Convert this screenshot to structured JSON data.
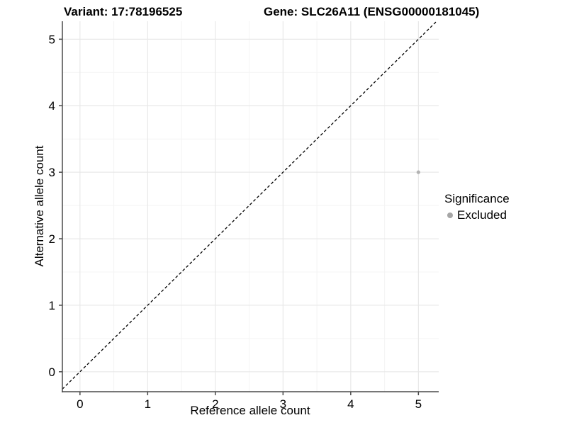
{
  "titles": {
    "left": "Variant: 17:78196525",
    "right": "Gene: SLC26A11 (ENSG00000181045)"
  },
  "chart_data": {
    "type": "scatter",
    "xlabel": "Reference allele count",
    "ylabel": "Alternative allele count",
    "xticks": [
      0,
      1,
      2,
      3,
      4,
      5
    ],
    "yticks": [
      0,
      1,
      2,
      3,
      4,
      5
    ],
    "xlim": [
      -0.26,
      5.3
    ],
    "ylim": [
      -0.3,
      5.27
    ],
    "grid": "major and minor, light gray on white",
    "identity_line": {
      "type": "dashed",
      "color": "#000000",
      "equation": "y = x"
    },
    "series": [
      {
        "name": "Excluded",
        "color": "#b3b3b3",
        "points": [
          {
            "x": 5,
            "y": 3
          }
        ]
      }
    ],
    "legend": {
      "title": "Significance",
      "position": "right",
      "entries": [
        {
          "label": "Excluded",
          "color": "#a6a6a6"
        }
      ]
    },
    "colors": {
      "grid_major": "#e8e8e8",
      "grid_minor": "#f4f4f4",
      "axis_line": "#4a4a4a",
      "tick_label": "#000000"
    }
  }
}
